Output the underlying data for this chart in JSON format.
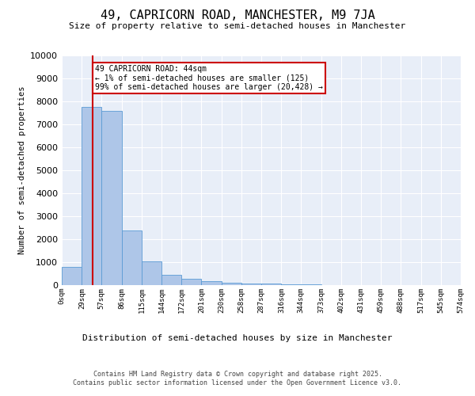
{
  "title": "49, CAPRICORN ROAD, MANCHESTER, M9 7JA",
  "subtitle": "Size of property relative to semi-detached houses in Manchester",
  "xlabel": "Distribution of semi-detached houses by size in Manchester",
  "ylabel": "Number of semi-detached properties",
  "bar_color": "#aec6e8",
  "bar_edge_color": "#5b9bd5",
  "vline_color": "#cc0000",
  "vline_x": 44,
  "annotation_text": "49 CAPRICORN ROAD: 44sqm\n← 1% of semi-detached houses are smaller (125)\n99% of semi-detached houses are larger (20,428) →",
  "annotation_box_color": "#cc0000",
  "bin_edges": [
    0,
    29,
    57,
    86,
    115,
    144,
    172,
    201,
    230,
    258,
    287,
    316,
    344,
    373,
    402,
    431,
    459,
    488,
    517,
    545,
    574
  ],
  "bin_labels": [
    "0sqm",
    "29sqm",
    "57sqm",
    "86sqm",
    "115sqm",
    "144sqm",
    "172sqm",
    "201sqm",
    "230sqm",
    "258sqm",
    "287sqm",
    "316sqm",
    "344sqm",
    "373sqm",
    "402sqm",
    "431sqm",
    "459sqm",
    "488sqm",
    "517sqm",
    "545sqm",
    "574sqm"
  ],
  "bar_heights": [
    800,
    7750,
    7600,
    2380,
    1030,
    450,
    280,
    175,
    120,
    80,
    55,
    35,
    22,
    15,
    10,
    7,
    5,
    3,
    2,
    1
  ],
  "ylim": [
    0,
    10000
  ],
  "yticks": [
    0,
    1000,
    2000,
    3000,
    4000,
    5000,
    6000,
    7000,
    8000,
    9000,
    10000
  ],
  "bg_color": "#e8eef8",
  "grid_color": "#ffffff",
  "footer_line1": "Contains HM Land Registry data © Crown copyright and database right 2025.",
  "footer_line2": "Contains public sector information licensed under the Open Government Licence v3.0."
}
